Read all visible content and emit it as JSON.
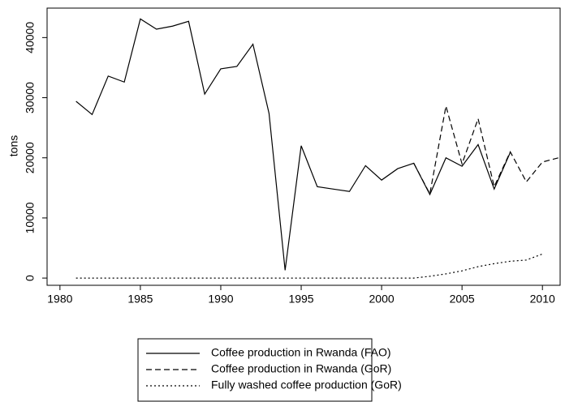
{
  "chart_data": {
    "type": "line",
    "ylabel": "tons",
    "x": [
      1981,
      1982,
      1983,
      1984,
      1985,
      1986,
      1987,
      1988,
      1989,
      1990,
      1991,
      1992,
      1993,
      1994,
      1995,
      1996,
      1997,
      1998,
      1999,
      2000,
      2001,
      2002,
      2003,
      2004,
      2005,
      2006,
      2007,
      2008,
      2009,
      2010,
      2011
    ],
    "series": [
      {
        "name": "Coffee production in Rwanda (FAO)",
        "color": "#000000",
        "dash": "none",
        "values": [
          29400,
          27200,
          33600,
          32600,
          43100,
          41400,
          41900,
          42700,
          30600,
          34800,
          35200,
          38900,
          27400,
          1300,
          22000,
          15200,
          14800,
          14400,
          18700,
          16300,
          18200,
          19100,
          13900,
          20000,
          18600,
          22200,
          14800,
          20900,
          null,
          null,
          null
        ]
      },
      {
        "name": "Coffee production in Rwanda (GoR)",
        "color": "#000000",
        "dash": "7,4",
        "values": [
          null,
          null,
          null,
          null,
          null,
          null,
          null,
          null,
          null,
          null,
          null,
          null,
          null,
          null,
          null,
          null,
          null,
          null,
          null,
          null,
          null,
          19100,
          14000,
          28600,
          19000,
          26500,
          15200,
          21000,
          16000,
          19300,
          20000
        ]
      },
      {
        "name": "Fully washed coffee production (GoR)",
        "color": "#000000",
        "dash": "2,3",
        "values": [
          0,
          0,
          0,
          0,
          0,
          0,
          0,
          0,
          0,
          0,
          0,
          0,
          0,
          0,
          0,
          0,
          0,
          0,
          0,
          0,
          0,
          0,
          300,
          700,
          1200,
          1900,
          2400,
          2800,
          3000,
          4000,
          null
        ]
      }
    ],
    "xlim": [
      1979.2,
      2011.1
    ],
    "xticks": [
      1980,
      1985,
      1990,
      1995,
      2000,
      2005,
      2010
    ],
    "ylim": [
      -1200,
      44900
    ],
    "yticks": [
      0,
      10000,
      20000,
      30000,
      40000
    ]
  }
}
